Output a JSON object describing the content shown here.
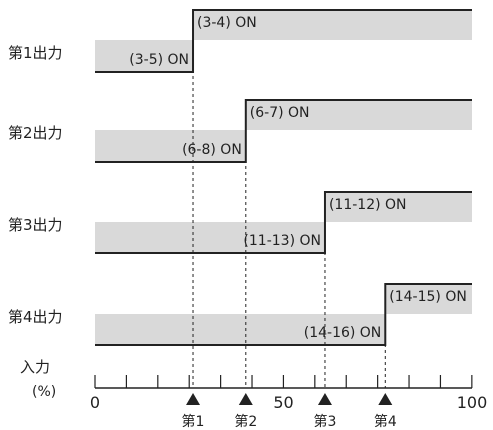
{
  "outputs": [
    {
      "label": "第1出力",
      "before_label": "(3-5) ON",
      "after_label": "(3-4) ON",
      "switch_at": 26
    },
    {
      "label": "第2出力",
      "before_label": "(6-8) ON",
      "after_label": "(6-7) ON",
      "switch_at": 40
    },
    {
      "label": "第3出力",
      "before_label": "(11-13) ON",
      "after_label": "(11-12) ON",
      "switch_at": 61
    },
    {
      "label": "第4出力",
      "before_label": "(14-16) ON",
      "after_label": "(14-15) ON",
      "switch_at": 77
    }
  ],
  "axis": {
    "title": "入力",
    "unit": "(%)",
    "min": 0,
    "max": 100,
    "tick_step": 8.33,
    "tick_labels": [
      {
        "value": 0,
        "text": "0"
      },
      {
        "value": 50,
        "text": "50"
      },
      {
        "value": 100,
        "text": "100"
      }
    ]
  },
  "markers": [
    {
      "value": 26,
      "label": "第1"
    },
    {
      "value": 40,
      "label": "第2"
    },
    {
      "value": 61,
      "label": "第3"
    },
    {
      "value": 77,
      "label": "第4"
    }
  ],
  "colors": {
    "fill": "#d9d9d9",
    "line": "#222222",
    "background": "#ffffff"
  }
}
